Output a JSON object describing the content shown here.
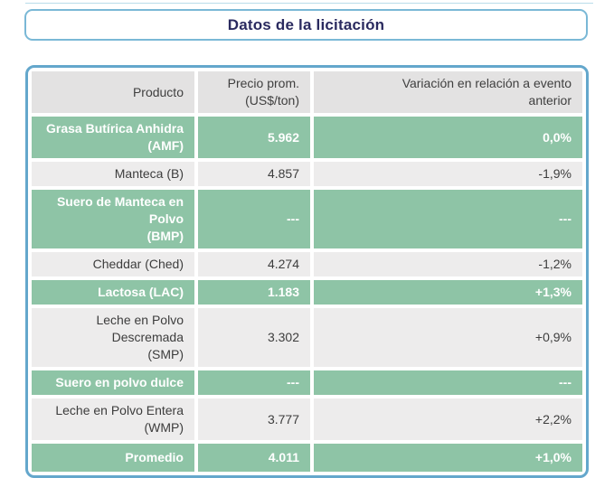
{
  "page": {
    "title": "Datos de la licitación"
  },
  "table": {
    "headers": {
      "producto": "Producto",
      "precio": "Precio prom.\n(US$/ton)",
      "variacion": "Variación en relación a evento\nanterior"
    },
    "rows": [
      {
        "producto": "Grasa Butírica Anhidra\n(AMF)",
        "precio": "5.962",
        "variacion": "0,0%",
        "highlight": true
      },
      {
        "producto": "Manteca (B)",
        "precio": "4.857",
        "variacion": "-1,9%",
        "highlight": false
      },
      {
        "producto": "Suero de Manteca en Polvo\n(BMP)",
        "precio": "---",
        "variacion": "---",
        "highlight": true
      },
      {
        "producto": "Cheddar (Ched)",
        "precio": "4.274",
        "variacion": "-1,2%",
        "highlight": false
      },
      {
        "producto": "Lactosa (LAC)",
        "precio": "1.183",
        "variacion": "+1,3%",
        "highlight": true
      },
      {
        "producto": "Leche en Polvo Descremada\n(SMP)",
        "precio": "3.302",
        "variacion": "+0,9%",
        "highlight": false
      },
      {
        "producto": "Suero en polvo dulce",
        "precio": "---",
        "variacion": "---",
        "highlight": true
      },
      {
        "producto": "Leche en Polvo Entera\n(WMP)",
        "precio": "3.777",
        "variacion": "+2,2%",
        "highlight": false
      },
      {
        "producto": "Promedio",
        "precio": "4.011",
        "variacion": "+1,0%",
        "highlight": true
      }
    ]
  },
  "chart_data": {
    "type": "table",
    "title": "Datos de la licitación",
    "columns": [
      "Producto",
      "Precio prom. (US$/ton)",
      "Variación en relación a evento anterior"
    ],
    "rows": [
      [
        "Grasa Butírica Anhidra (AMF)",
        "5.962",
        "0,0%"
      ],
      [
        "Manteca (B)",
        "4.857",
        "-1,9%"
      ],
      [
        "Suero de Manteca en Polvo (BMP)",
        "---",
        "---"
      ],
      [
        "Cheddar (Ched)",
        "4.274",
        "-1,2%"
      ],
      [
        "Lactosa (LAC)",
        "1.183",
        "+1,3%"
      ],
      [
        "Leche en Polvo Descremada (SMP)",
        "3.302",
        "+0,9%"
      ],
      [
        "Suero en polvo dulce",
        "---",
        "---"
      ],
      [
        "Leche en Polvo Entera (WMP)",
        "3.777",
        "+2,2%"
      ],
      [
        "Promedio",
        "4.011",
        "+1,0%"
      ]
    ],
    "highlighted_row_indices": [
      0,
      2,
      4,
      6,
      8
    ],
    "legend_position": "none",
    "grid": false
  },
  "colors": {
    "highlight_green": "#8ec4a6",
    "header_gray": "#e3e2e2",
    "row_gray": "#edecec",
    "card_border_blue": "#64a7cc",
    "title_border_blue": "#7ab8d6",
    "title_text_navy": "#2a2a5f",
    "body_text": "#3d3d3d",
    "white_text": "#ffffff"
  }
}
